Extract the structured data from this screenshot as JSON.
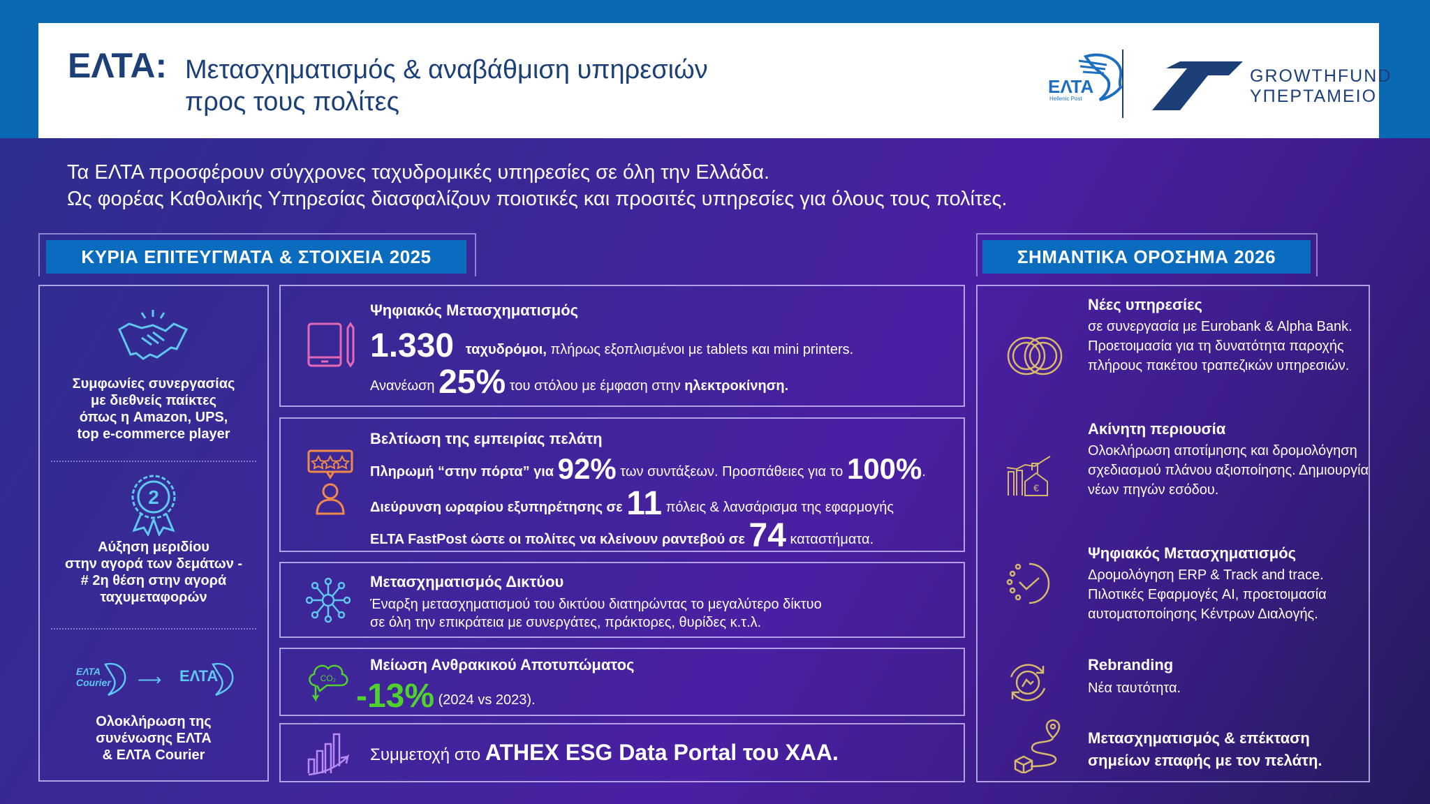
{
  "header": {
    "brand": "ΕΛΤΑ:",
    "title_line1": "Μετασχηματισμός & αναβάθμιση υπηρεσιών",
    "title_line2": "προς τους πολίτες",
    "logo_elta": "ΕΛΤΑ",
    "logo_elta_sub": "Hellenic Post",
    "logo_gf_line1": "GROWTHFUND",
    "logo_gf_line2": "ΥΠΕΡΤΑΜΕΙΟ"
  },
  "intro": {
    "line1": "Τα ΕΛΤΑ προσφέρουν σύγχρονες ταχυδρομικές υπηρεσίες σε όλη την Ελλάδα.",
    "line2": "Ως φορέας Καθολικής Υπηρεσίας διασφαλίζουν ποιοτικές και προσιτές υπηρεσίες για όλους τους πολίτες."
  },
  "left_section": {
    "title": "ΚΥΡΙΑ ΕΠΙΤΕΥΓΜΑΤΑ & ΣΤΟΙΧΕΙΑ 2025"
  },
  "right_section": {
    "title": "ΣΗΜΑΝΤΙΚΑ ΟΡΟΣΗΜΑ 2026"
  },
  "left_items": [
    {
      "lines": [
        "Συμφωνίες συνεργασίας",
        "με διεθνείς παίκτες",
        "όπως η Amazon, UPS,",
        "top e-commerce player"
      ]
    },
    {
      "badge": "2",
      "lines": [
        "Αύξηση μεριδίου",
        "στην αγορά των δεμάτων -",
        "# 2η θέση στην αγορά",
        "ταχυμεταφορών"
      ]
    },
    {
      "logo_from_1": "ΕΛΤΑ",
      "logo_from_2": "Courier",
      "logo_to": "ΕΛΤΑ",
      "lines": [
        "Ολοκλήρωση της",
        "συνένωσης ΕΛΤΑ",
        "& ΕΛΤΑ Courier"
      ]
    }
  ],
  "mid": {
    "digital": {
      "title": "Ψηφιακός Μετασχηματισμός",
      "n1": "1.330",
      "t1a": "ταχυδρόμοι,",
      "t1b": " πλήρως εξοπλισμένοι με tablets και mini printers.",
      "t2a": "Ανανέωση ",
      "n2": "25%",
      "t2b": " του στόλου με έμφαση στην ",
      "t2c": "ηλεκτροκίνηση."
    },
    "cx": {
      "title": "Βελτίωση της εμπειρίας πελάτη",
      "l1a": "Πληρωμή “στην πόρτα” για ",
      "n1": "92%",
      "l1b": " των συντάξεων. Προσπάθειες για το ",
      "n2": "100%",
      "l1c": ".",
      "l2a": "Διεύρυνση ωραρίου εξυπηρέτησης σε ",
      "n3": "11",
      "l2b": " πόλεις & λανσάρισμα της εφαρμογής",
      "l3a": "ELTA FastPost ώστε οι πολίτες να κλείνουν ραντεβού σε ",
      "n4": "74",
      "l3b": " καταστήματα."
    },
    "network": {
      "title": "Μετασχηματισμός Δικτύου",
      "l1": "Έναρξη μετασχηματισμού του δικτύου διατηρώντας το μεγαλύτερο δίκτυο",
      "l2": "σε όλη την επικράτεια με συνεργάτες, πράκτορες, θυρίδες κ.τ.λ."
    },
    "carbon": {
      "title": "Μείωση Ανθρακικού Αποτυπώματος",
      "value": "-13%",
      "note": " (2024 vs 2023).",
      "icon_text": "CO₂"
    },
    "esg": {
      "a": "Συμμετοχή στο ",
      "b": "ATHEX ESG Data Portal του ΧΑΑ."
    }
  },
  "right_items": [
    {
      "title": "Νέες υπηρεσίες",
      "body": "σε συνεργασία με Eurobank & Alpha Bank. Προετοιμασία για τη δυνατότητα παροχής πλήρους πακέτου τραπεζικών υπηρεσιών."
    },
    {
      "title": "Ακίνητη περιουσία",
      "body": "Ολοκλήρωση αποτίμησης και δρομολόγηση σχεδιασμού πλάνου αξιοποίησης. Δημιουργία νέων πηγών εσόδου."
    },
    {
      "title": "Ψηφιακός Μετασχηματισμός",
      "body": "Δρομολόγηση ERP & Track and trace. Πιλοτικές Εφαρμογές AI, προετοιμασία αυτοματοποίησης Κέντρων Διαλογής."
    },
    {
      "title": "Rebranding",
      "body": "Νέα ταυτότητα."
    },
    {
      "title": "Μετασχηματισμός & επέκταση σημείων επαφής με τον πελάτη."
    }
  ],
  "colors": {
    "blue_tab": "#0b6bbf",
    "header_text": "#1c3f78",
    "green": "#4fd12e",
    "gold": "#d9b96a",
    "cyan": "#5ec8f0",
    "pink": "#e46ab8",
    "orange": "#f08a4b"
  }
}
